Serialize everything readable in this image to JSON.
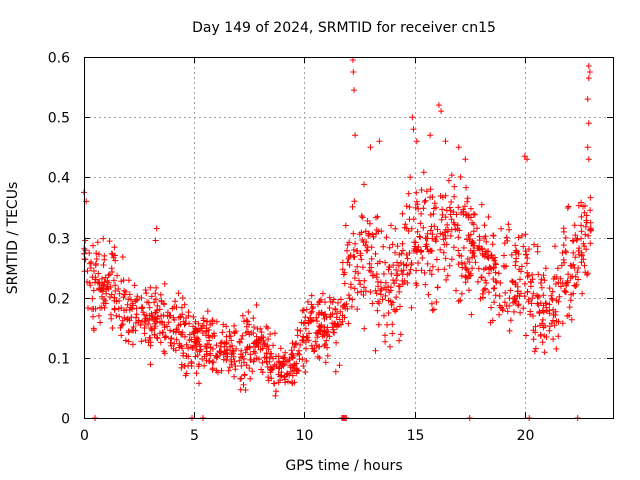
{
  "chart_data": {
    "type": "scatter",
    "title": "Day 149 of 2024, SRMTID for receiver cn15",
    "xlabel": "GPS time / hours",
    "ylabel": "SRMTID / TECUs",
    "xlim": [
      0,
      24
    ],
    "ylim": [
      0,
      0.6
    ],
    "xticks": [
      0,
      5,
      10,
      15,
      20
    ],
    "yticks": [
      0,
      0.1,
      0.2,
      0.3,
      0.4,
      0.5,
      0.6
    ],
    "xtick_labels": [
      "0",
      "5",
      "10",
      "15",
      "20"
    ],
    "ytick_labels": [
      "0",
      "0.1",
      "0.2",
      "0.3",
      "0.4",
      "0.5",
      "0.6"
    ],
    "grid": true,
    "marker": "+",
    "color": "#ff0000",
    "series": [
      {
        "name": "SRMTID",
        "trend_hours": [
          0,
          0.5,
          1,
          1.5,
          2,
          2.5,
          3,
          3.5,
          4,
          4.5,
          5,
          5.5,
          6,
          6.5,
          7,
          7.5,
          8,
          8.5,
          9,
          9.5,
          10,
          10.5,
          11,
          11.5,
          12,
          12.5,
          13,
          13.5,
          14,
          14.5,
          15,
          15.5,
          16,
          16.5,
          17,
          17.5,
          18,
          18.5,
          19,
          19.5,
          20,
          20.5,
          21,
          21.5,
          22,
          22.5,
          23
        ],
        "trend_values": [
          0.25,
          0.22,
          0.22,
          0.2,
          0.18,
          0.17,
          0.16,
          0.16,
          0.15,
          0.13,
          0.12,
          0.13,
          0.12,
          0.12,
          0.11,
          0.13,
          0.13,
          0.09,
          0.08,
          0.08,
          0.14,
          0.15,
          0.16,
          0.15,
          0.24,
          0.27,
          0.27,
          0.23,
          0.22,
          0.26,
          0.3,
          0.3,
          0.29,
          0.31,
          0.29,
          0.28,
          0.26,
          0.24,
          0.22,
          0.23,
          0.25,
          0.2,
          0.16,
          0.2,
          0.25,
          0.28,
          0.3
        ],
        "noise": [
          0.04,
          0.05,
          0.05,
          0.05,
          0.04,
          0.04,
          0.04,
          0.04,
          0.04,
          0.04,
          0.04,
          0.04,
          0.03,
          0.03,
          0.04,
          0.04,
          0.04,
          0.03,
          0.03,
          0.03,
          0.04,
          0.04,
          0.04,
          0.04,
          0.06,
          0.07,
          0.07,
          0.06,
          0.06,
          0.07,
          0.07,
          0.07,
          0.07,
          0.07,
          0.06,
          0.06,
          0.06,
          0.06,
          0.06,
          0.06,
          0.06,
          0.06,
          0.05,
          0.06,
          0.06,
          0.06,
          0.06
        ],
        "spikes": [
          {
            "x": 0.0,
            "y": 0.375
          },
          {
            "x": 0.1,
            "y": 0.36
          },
          {
            "x": 3.3,
            "y": 0.315
          },
          {
            "x": 3.25,
            "y": 0.295
          },
          {
            "x": 12.2,
            "y": 0.595
          },
          {
            "x": 12.22,
            "y": 0.575
          },
          {
            "x": 12.25,
            "y": 0.545
          },
          {
            "x": 12.3,
            "y": 0.47
          },
          {
            "x": 13.0,
            "y": 0.45
          },
          {
            "x": 13.4,
            "y": 0.46
          },
          {
            "x": 14.9,
            "y": 0.5
          },
          {
            "x": 14.95,
            "y": 0.48
          },
          {
            "x": 15.1,
            "y": 0.46
          },
          {
            "x": 16.1,
            "y": 0.52
          },
          {
            "x": 16.2,
            "y": 0.51
          },
          {
            "x": 15.7,
            "y": 0.47
          },
          {
            "x": 16.4,
            "y": 0.46
          },
          {
            "x": 17.0,
            "y": 0.45
          },
          {
            "x": 17.3,
            "y": 0.43
          },
          {
            "x": 20.0,
            "y": 0.435
          },
          {
            "x": 20.1,
            "y": 0.43
          },
          {
            "x": 22.9,
            "y": 0.585
          },
          {
            "x": 22.95,
            "y": 0.575
          },
          {
            "x": 22.9,
            "y": 0.565
          },
          {
            "x": 22.85,
            "y": 0.53
          },
          {
            "x": 22.9,
            "y": 0.49
          },
          {
            "x": 22.85,
            "y": 0.45
          },
          {
            "x": 22.9,
            "y": 0.43
          }
        ],
        "zero_points": [
          0.5,
          4.9,
          5.4,
          11.7,
          11.75,
          11.8,
          11.85,
          11.9,
          17.5,
          20.2,
          22.4
        ]
      }
    ]
  }
}
